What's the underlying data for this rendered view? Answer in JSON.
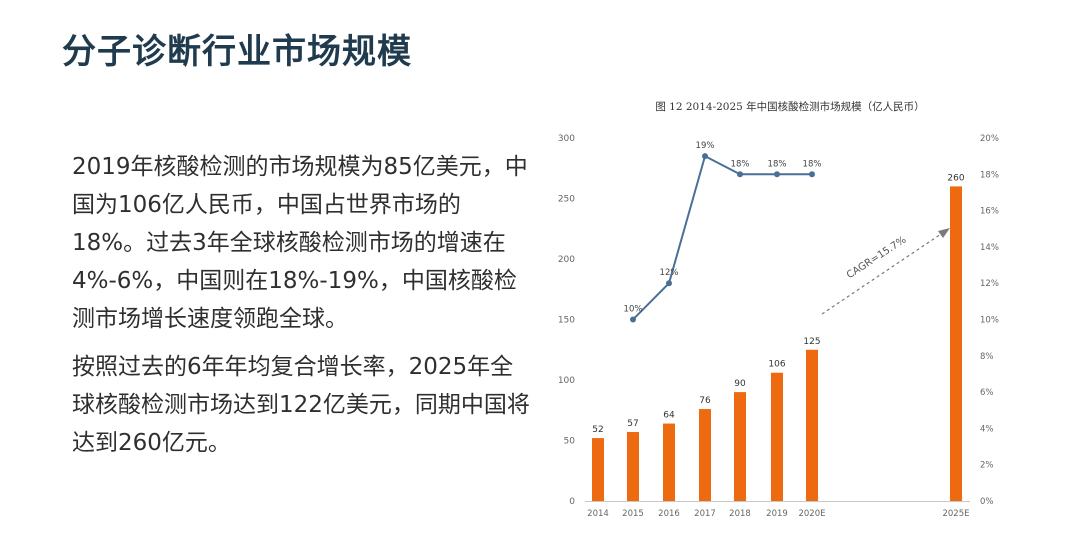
{
  "page": {
    "title": "分子诊断行业市场规模",
    "paragraphs": [
      "2019年核酸检测的市场规模为85亿美元，中国为106亿人民币，中国占世界市场的18%。过去3年全球核酸检测市场的增速在4%-6%，中国则在18%-19%，中国核酸检测市场增长速度领跑全球。",
      "按照过去的6年年均复合增长率，2025年全球核酸检测市场达到122亿美元，同期中国将达到260亿元。"
    ]
  },
  "chart_data": {
    "type": "bar",
    "title": "图 12 2014-2025 年中国核酸检测市场规模（亿人民币）",
    "categories": [
      "2014",
      "2015",
      "2016",
      "2017",
      "2018",
      "2019",
      "2020E",
      "2025E"
    ],
    "bar_values": [
      52,
      57,
      64,
      76,
      90,
      106,
      125,
      260
    ],
    "bar_labels": [
      "52",
      "57",
      "64",
      "76",
      "90",
      "106",
      "125",
      "260"
    ],
    "line_values": [
      null,
      0.1,
      0.12,
      0.19,
      0.18,
      0.18,
      0.18,
      null
    ],
    "line_labels": [
      "",
      "10%",
      "12%",
      "19%",
      "18%",
      "18%",
      "18%",
      ""
    ],
    "ylim_left": [
      0,
      300
    ],
    "yticks_left": [
      "0",
      "50",
      "100",
      "150",
      "200",
      "250",
      "300"
    ],
    "ylim_right": [
      0,
      0.2
    ],
    "yticks_right": [
      "0%",
      "2%",
      "4%",
      "6%",
      "8%",
      "10%",
      "12%",
      "14%",
      "16%",
      "18%",
      "20%"
    ],
    "annotation": "CAGR=15.7%",
    "colors": {
      "bar": "#ee6a10",
      "line": "#4a6f96",
      "axis_text": "#666666",
      "annotation": "#7a7a7a"
    }
  }
}
